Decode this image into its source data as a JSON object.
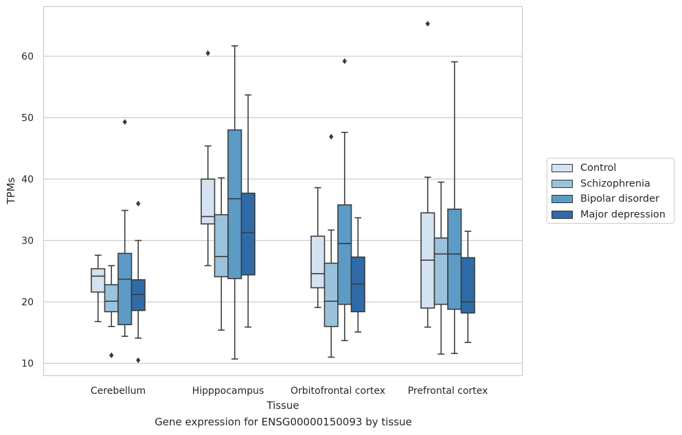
{
  "caption": "Gene expression for ENSG00000150093 by tissue",
  "chart_data": {
    "type": "box",
    "xlabel": "Tissue",
    "ylabel": "TPMs",
    "ylim": [
      8,
      67
    ],
    "yticks": [
      10,
      20,
      30,
      40,
      50,
      60
    ],
    "grid": "horizontal",
    "legend_position": "right",
    "categories": [
      "Cerebellum",
      "Hipppocampus",
      "Orbitofrontal cortex",
      "Prefrontal cortex"
    ],
    "series": [
      {
        "name": "Control",
        "color": "#d4e2f1",
        "boxes": [
          {
            "whislo": 16.8,
            "q1": 21.6,
            "med": 24.2,
            "q3": 25.4,
            "whishi": 27.6,
            "fliers": []
          },
          {
            "whislo": 25.9,
            "q1": 32.7,
            "med": 33.9,
            "q3": 40.0,
            "whishi": 45.4,
            "fliers": [
              60.5
            ]
          },
          {
            "whislo": 19.1,
            "q1": 22.3,
            "med": 24.6,
            "q3": 30.7,
            "whishi": 38.6,
            "fliers": []
          },
          {
            "whislo": 15.9,
            "q1": 19.0,
            "med": 26.8,
            "q3": 34.5,
            "whishi": 40.3,
            "fliers": [
              65.3
            ]
          }
        ]
      },
      {
        "name": "Schizophrenia",
        "color": "#9bc2dc",
        "boxes": [
          {
            "whislo": 16.0,
            "q1": 18.4,
            "med": 20.1,
            "q3": 22.8,
            "whishi": 25.9,
            "fliers": [
              11.3
            ]
          },
          {
            "whislo": 15.4,
            "q1": 24.1,
            "med": 27.4,
            "q3": 34.2,
            "whishi": 40.2,
            "fliers": []
          },
          {
            "whislo": 11.0,
            "q1": 16.0,
            "med": 20.1,
            "q3": 26.3,
            "whishi": 31.7,
            "fliers": [
              46.9
            ]
          },
          {
            "whislo": 11.5,
            "q1": 19.6,
            "med": 27.8,
            "q3": 30.4,
            "whishi": 39.5,
            "fliers": []
          }
        ]
      },
      {
        "name": "Bipolar disorder",
        "color": "#5b9bc6",
        "boxes": [
          {
            "whislo": 14.4,
            "q1": 16.3,
            "med": 23.7,
            "q3": 27.9,
            "whishi": 34.9,
            "fliers": [
              49.3
            ]
          },
          {
            "whislo": 10.7,
            "q1": 23.8,
            "med": 36.8,
            "q3": 48.0,
            "whishi": 61.7,
            "fliers": []
          },
          {
            "whislo": 13.7,
            "q1": 19.6,
            "med": 29.5,
            "q3": 35.8,
            "whishi": 47.6,
            "fliers": [
              59.2
            ]
          },
          {
            "whislo": 11.6,
            "q1": 18.8,
            "med": 27.8,
            "q3": 35.1,
            "whishi": 59.1,
            "fliers": []
          }
        ]
      },
      {
        "name": "Major depression",
        "color": "#2e6ba8",
        "boxes": [
          {
            "whislo": 14.1,
            "q1": 18.6,
            "med": 21.2,
            "q3": 23.6,
            "whishi": 30.0,
            "fliers": [
              36.0,
              10.5
            ]
          },
          {
            "whislo": 15.9,
            "q1": 24.4,
            "med": 31.3,
            "q3": 37.7,
            "whishi": 53.7,
            "fliers": []
          },
          {
            "whislo": 15.1,
            "q1": 18.4,
            "med": 22.9,
            "q3": 27.3,
            "whishi": 33.7,
            "fliers": []
          },
          {
            "whislo": 13.4,
            "q1": 18.2,
            "med": 20.0,
            "q3": 27.2,
            "whishi": 31.5,
            "fliers": []
          }
        ]
      }
    ]
  }
}
